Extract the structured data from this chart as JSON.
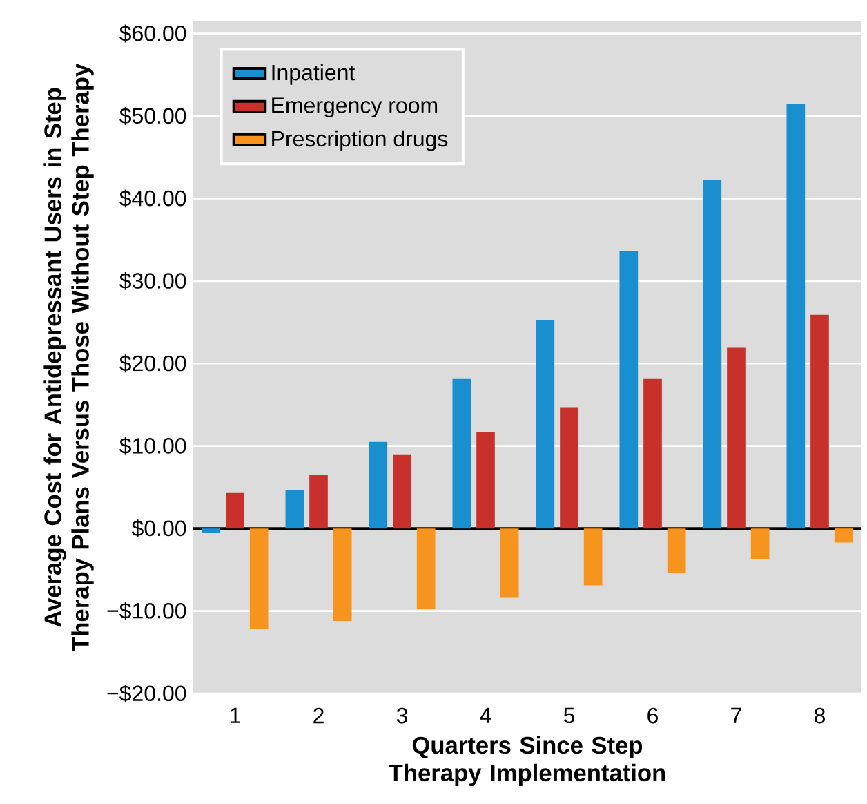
{
  "chart_data": {
    "type": "bar",
    "xlabel": "Quarters Since Step Therapy Implementation",
    "ylabel": "Average Cost for Antidepressant Users in Step Therapy Plans Versus Those Without Step Therapy",
    "categories": [
      "1",
      "2",
      "3",
      "4",
      "5",
      "6",
      "7",
      "8"
    ],
    "series": [
      {
        "name": "Inpatient",
        "color": "#1a8fd0",
        "values": [
          -0.5,
          4.7,
          10.5,
          18.2,
          25.3,
          33.6,
          42.3,
          51.5
        ]
      },
      {
        "name": "Emergency room",
        "color": "#c8302c",
        "values": [
          4.3,
          6.5,
          8.9,
          11.7,
          14.7,
          18.2,
          21.9,
          25.9
        ]
      },
      {
        "name": "Prescription drugs",
        "color": "#f7941d",
        "values": [
          -12.2,
          -11.2,
          -9.7,
          -8.4,
          -6.9,
          -5.4,
          -3.7,
          -1.7
        ]
      }
    ],
    "ylim": [
      -20,
      61.5
    ],
    "yticks": [
      {
        "value": -20,
        "label": "−$20.00"
      },
      {
        "value": -10,
        "label": "−$10.00"
      },
      {
        "value": 0,
        "label": "$0.00"
      },
      {
        "value": 10,
        "label": "$10.00"
      },
      {
        "value": 20,
        "label": "$20.00"
      },
      {
        "value": 30,
        "label": "$30.00"
      },
      {
        "value": 40,
        "label": "$40.00"
      },
      {
        "value": 50,
        "label": "$50.00"
      },
      {
        "value": 60,
        "label": "$60.00"
      }
    ],
    "ref_lines": [
      {
        "axis": "y",
        "value": 0,
        "color": "#000000"
      }
    ],
    "grid": "y",
    "legend": "top left"
  }
}
